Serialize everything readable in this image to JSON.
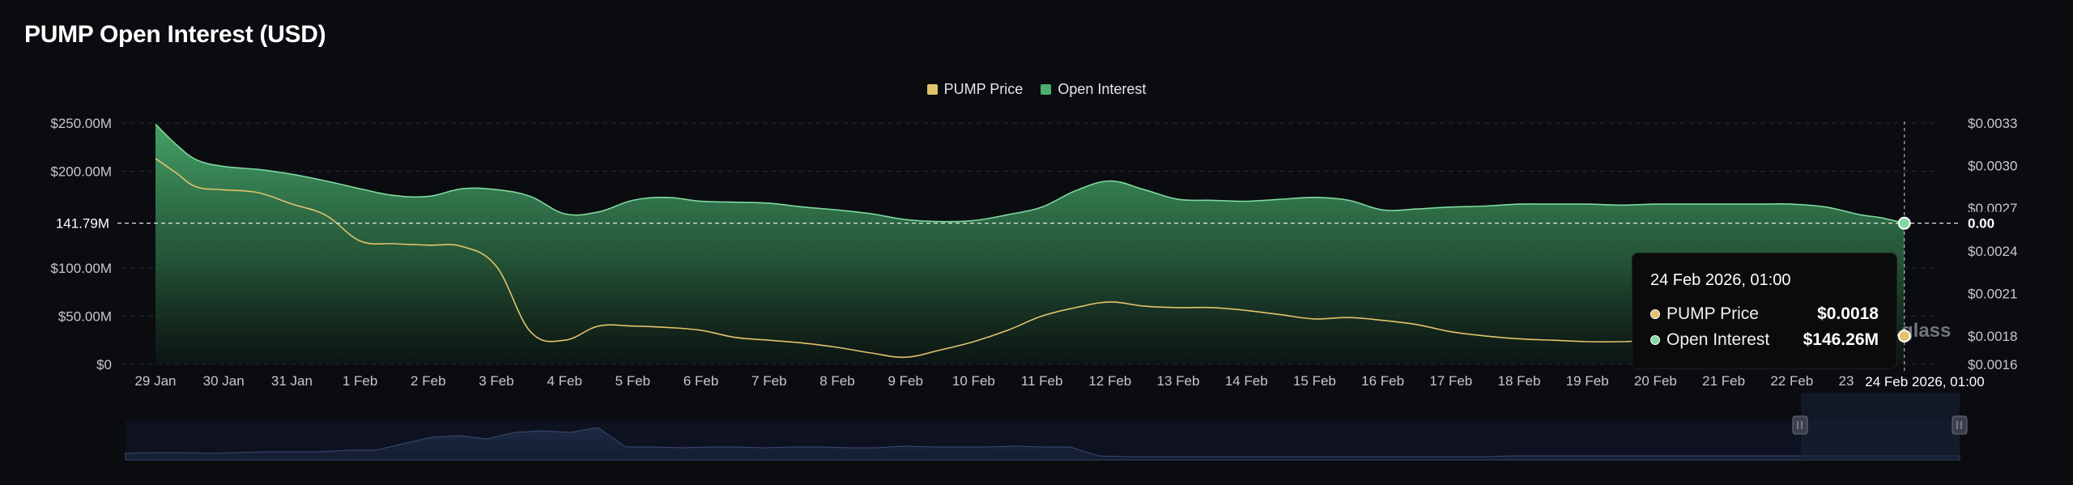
{
  "title": "PUMP Open Interest (USD)",
  "colors": {
    "background": "#0a0c10",
    "price": "#e2c36b",
    "open_interest": "#4caf70",
    "grid": "#2a2d33"
  },
  "legend": [
    {
      "label": "PUMP Price",
      "color": "#e2c36b"
    },
    {
      "label": "Open Interest",
      "color": "#4caf70"
    }
  ],
  "crosshair": {
    "left_label": "141.79M",
    "right_label": "0.00",
    "x_label": "24 Feb 2026, 01:00"
  },
  "tooltip": {
    "title": "24 Feb 2026, 01:00",
    "rows": [
      {
        "label": "PUMP Price",
        "value": "$0.0018",
        "color": "#e2c36b"
      },
      {
        "label": "Open Interest",
        "value": "$146.26M",
        "color": "#7fd9a0"
      }
    ]
  },
  "watermark": "glass",
  "chart_data": {
    "type": "area",
    "x_labels": [
      "29 Jan",
      "30 Jan",
      "31 Jan",
      "1 Feb",
      "2 Feb",
      "3 Feb",
      "4 Feb",
      "5 Feb",
      "6 Feb",
      "7 Feb",
      "8 Feb",
      "9 Feb",
      "10 Feb",
      "11 Feb",
      "12 Feb",
      "13 Feb",
      "14 Feb",
      "15 Feb",
      "16 Feb",
      "17 Feb",
      "18 Feb",
      "19 Feb",
      "20 Feb",
      "21 Feb",
      "22 Feb",
      "23 Feb"
    ],
    "y_left": {
      "ticks": [
        {
          "value": 0,
          "label": "$0"
        },
        {
          "value": 50,
          "label": "$50.00M"
        },
        {
          "value": 100,
          "label": "$100.00M"
        },
        {
          "value": 200,
          "label": "$200.00M"
        },
        {
          "value": 250,
          "label": "$250.00M"
        }
      ],
      "range": [
        0,
        250
      ]
    },
    "y_right": {
      "ticks": [
        {
          "value": 0.0016,
          "label": "$0.0016"
        },
        {
          "value": 0.0018,
          "label": "$0.0018"
        },
        {
          "value": 0.0021,
          "label": "$0.0021"
        },
        {
          "value": 0.0024,
          "label": "$0.0024"
        },
        {
          "value": 0.0027,
          "label": "$0.0027"
        },
        {
          "value": 0.003,
          "label": "$0.0030"
        },
        {
          "value": 0.0033,
          "label": "$0.0033"
        }
      ],
      "range": [
        0.0016,
        0.0033
      ]
    },
    "series": [
      {
        "name": "Open Interest",
        "axis": "left",
        "x": [
          0,
          0.3,
          0.6,
          1,
          1.5,
          2,
          2.5,
          3,
          3.5,
          4,
          4.5,
          5,
          5.5,
          6,
          6.5,
          7,
          7.5,
          8,
          8.5,
          9,
          9.5,
          10,
          10.5,
          11,
          11.5,
          12,
          12.5,
          13,
          13.5,
          14,
          14.5,
          15,
          15.5,
          16,
          16.5,
          17,
          17.5,
          18,
          18.5,
          19,
          19.5,
          20,
          20.5,
          21,
          21.5,
          22,
          22.5,
          23,
          23.5,
          24,
          24.5,
          25,
          25.3,
          25.65
        ],
        "values": [
          249,
          228,
          212,
          205,
          202,
          197,
          190,
          182,
          175,
          174,
          182,
          181,
          174,
          156,
          158,
          170,
          173,
          169,
          168,
          167,
          163,
          160,
          156,
          150,
          148,
          149,
          155,
          163,
          180,
          190,
          181,
          171,
          170,
          169,
          171,
          173,
          170,
          160,
          161,
          163,
          164,
          166,
          166,
          166,
          165,
          166,
          166,
          166,
          166,
          166,
          163,
          155,
          152,
          146.26
        ]
      },
      {
        "name": "PUMP Price",
        "axis": "right",
        "x": [
          0,
          0.3,
          0.6,
          1,
          1.5,
          2,
          2.5,
          3,
          3.5,
          4,
          4.5,
          5,
          5.5,
          6,
          6.5,
          7,
          7.5,
          8,
          8.5,
          9,
          9.5,
          10,
          10.5,
          11,
          11.5,
          12,
          12.5,
          13,
          13.5,
          14,
          14.5,
          15,
          15.5,
          16,
          16.5,
          17,
          17.5,
          18,
          18.5,
          19,
          19.5,
          20,
          20.5,
          21,
          21.5,
          22,
          22.5,
          23,
          23.5,
          24,
          24.5,
          25,
          25.3,
          25.65
        ],
        "values": [
          0.00305,
          0.00295,
          0.00285,
          0.00283,
          0.00281,
          0.00273,
          0.00265,
          0.00247,
          0.00245,
          0.00244,
          0.00243,
          0.00229,
          0.00183,
          0.00177,
          0.00187,
          0.00187,
          0.00186,
          0.00184,
          0.00179,
          0.00177,
          0.00175,
          0.00172,
          0.00168,
          0.00165,
          0.0017,
          0.00176,
          0.00184,
          0.00194,
          0.002,
          0.00204,
          0.00201,
          0.002,
          0.002,
          0.00198,
          0.00195,
          0.00192,
          0.00193,
          0.00191,
          0.00188,
          0.00183,
          0.0018,
          0.00178,
          0.00177,
          0.00176,
          0.00176,
          0.00177,
          0.00177,
          0.00178,
          0.00178,
          0.00179,
          0.0018,
          0.00181,
          0.00182,
          0.0018
        ]
      }
    ],
    "grid": true,
    "legend_position": "top-center"
  }
}
